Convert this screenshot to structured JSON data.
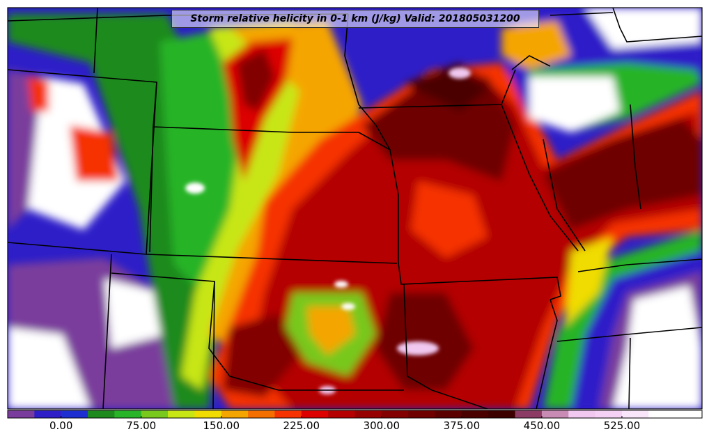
{
  "title": "Storm relative helicity in 0-1 km (J/kg) Valid: 201805031200",
  "colorbar": {
    "min": -50,
    "max": 600,
    "step": 25,
    "colors": [
      "#7a3c9c",
      "#2d1ec8",
      "#1e2fd2",
      "#1e8a1e",
      "#28b428",
      "#78c81e",
      "#c8e614",
      "#f0dc00",
      "#f5a500",
      "#f56e00",
      "#f53200",
      "#dc0000",
      "#b40000",
      "#960000",
      "#820000",
      "#6e0000",
      "#5a0000",
      "#4b0000",
      "#3c0000",
      "#8c3c64",
      "#c88cb4",
      "#f0c8f0",
      "#f5d2f5",
      "#fae6fa",
      "#ffffff",
      "#ffffff"
    ],
    "tick_labels": [
      {
        "value": 0,
        "label": "0.00"
      },
      {
        "value": 75,
        "label": "75.00"
      },
      {
        "value": 150,
        "label": "150.00"
      },
      {
        "value": 225,
        "label": "225.00"
      },
      {
        "value": 300,
        "label": "300.00"
      },
      {
        "value": 375,
        "label": "375.00"
      },
      {
        "value": 450,
        "label": "450.00"
      },
      {
        "value": 525,
        "label": "525.00"
      }
    ]
  }
}
